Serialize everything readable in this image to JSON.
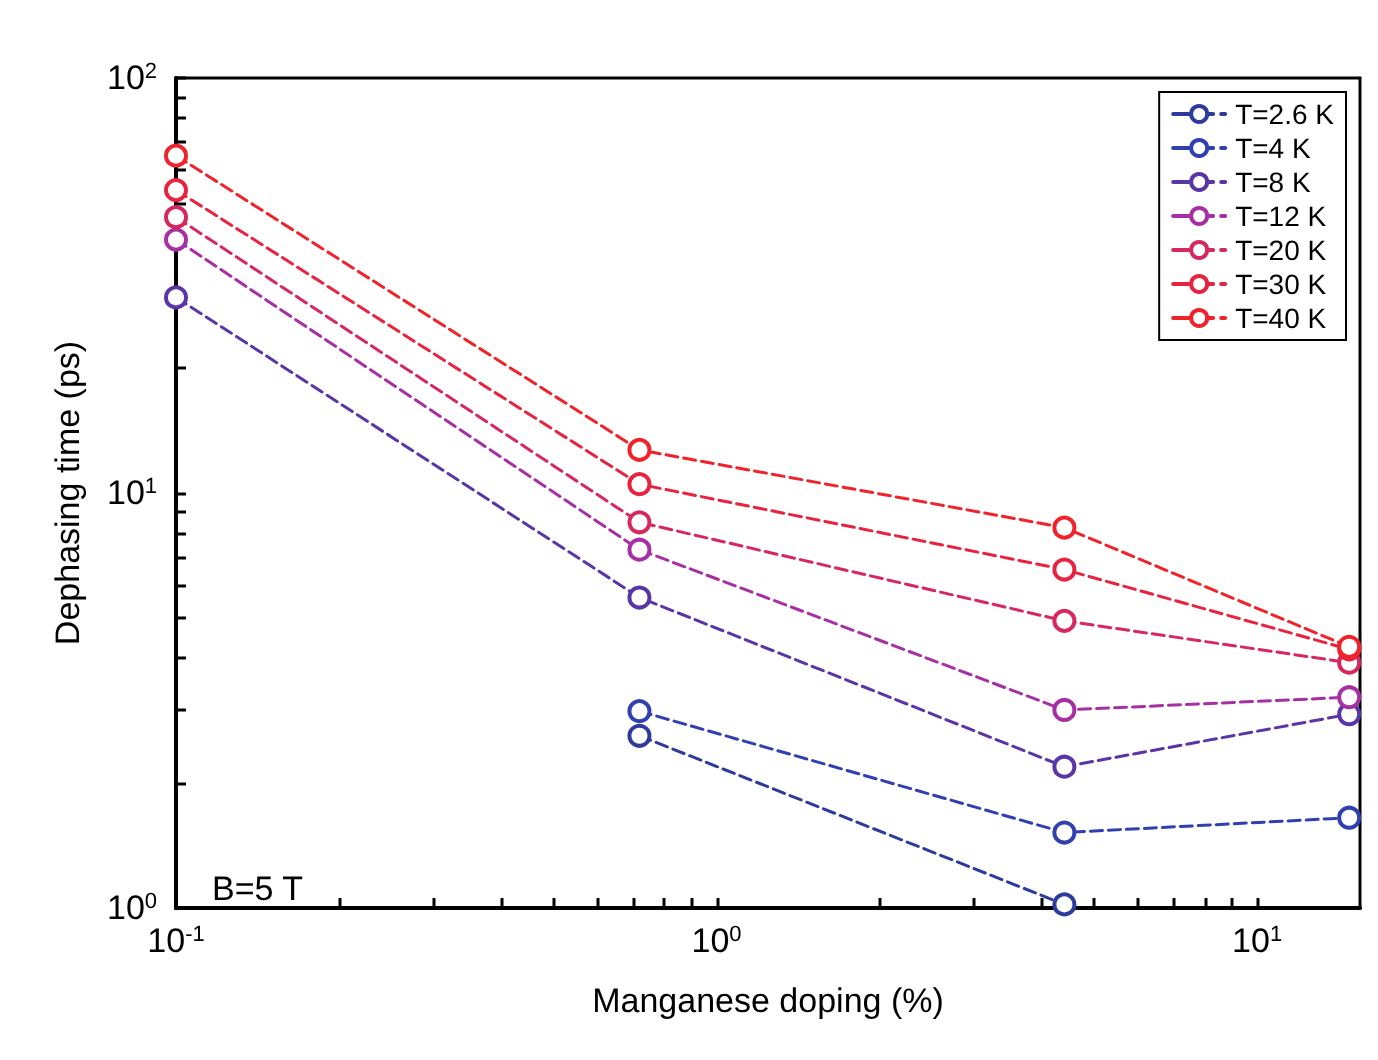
{
  "chart_data": {
    "type": "line",
    "xlabel": "Manganese doping (%)",
    "ylabel": "Dephasing time (ps)",
    "x": [
      0.1,
      0.72,
      4.4,
      14.8
    ],
    "series": [
      {
        "name": "T=2.6 K",
        "color": "#2d3c9c",
        "values": [
          null,
          2.6,
          1.02,
          null
        ]
      },
      {
        "name": "T=4 K",
        "color": "#3040b0",
        "values": [
          null,
          2.98,
          1.52,
          1.65
        ]
      },
      {
        "name": "T=8 K",
        "color": "#5a35a6",
        "values": [
          29.6,
          5.6,
          2.19,
          2.93
        ]
      },
      {
        "name": "T=12 K",
        "color": "#a630a3",
        "values": [
          40.8,
          7.3,
          3.0,
          3.22
        ]
      },
      {
        "name": "T=20 K",
        "color": "#d6285e",
        "values": [
          46.2,
          8.5,
          4.92,
          3.9
        ]
      },
      {
        "name": "T=30 K",
        "color": "#e8233f",
        "values": [
          53.7,
          10.5,
          6.54,
          4.2
        ]
      },
      {
        "name": "T=40 K",
        "color": "#f0232a",
        "values": [
          65,
          12.7,
          8.25,
          4.26
        ]
      }
    ],
    "log": "xy",
    "xlim": [
      0.1,
      15.5
    ],
    "ylim": [
      1,
      100
    ],
    "xticks": [
      {
        "value": 0.1,
        "label": "10$^{-1}$"
      },
      {
        "value": 0.2,
        "label": null
      },
      {
        "value": 0.3,
        "label": null
      },
      {
        "value": 0.4,
        "label": null
      },
      {
        "value": 0.5,
        "label": null
      },
      {
        "value": 0.6,
        "label": null
      },
      {
        "value": 0.7,
        "label": null
      },
      {
        "value": 0.8,
        "label": null
      },
      {
        "value": 0.9,
        "label": null
      },
      {
        "value": 1,
        "label": "10$^{0}$"
      },
      {
        "value": 2,
        "label": null
      },
      {
        "value": 3,
        "label": null
      },
      {
        "value": 4,
        "label": null
      },
      {
        "value": 5,
        "label": null
      },
      {
        "value": 6,
        "label": null
      },
      {
        "value": 7,
        "label": null
      },
      {
        "value": 8,
        "label": null
      },
      {
        "value": 9,
        "label": null
      },
      {
        "value": 10,
        "label": "10$^{1}$"
      }
    ],
    "yticks": [
      {
        "value": 1,
        "label": "10$^{0}$"
      },
      {
        "value": 2,
        "label": null
      },
      {
        "value": 3,
        "label": null
      },
      {
        "value": 4,
        "label": null
      },
      {
        "value": 5,
        "label": null
      },
      {
        "value": 6,
        "label": null
      },
      {
        "value": 7,
        "label": null
      },
      {
        "value": 8,
        "label": null
      },
      {
        "value": 9,
        "label": null
      },
      {
        "value": 10,
        "label": "10$^{1}$"
      },
      {
        "value": 20,
        "label": null
      },
      {
        "value": 30,
        "label": null
      },
      {
        "value": 40,
        "label": null
      },
      {
        "value": 50,
        "label": null
      },
      {
        "value": 60,
        "label": null
      },
      {
        "value": 70,
        "label": null
      },
      {
        "value": 80,
        "label": null
      },
      {
        "value": 90,
        "label": null
      },
      {
        "value": 100,
        "label": "10$^{2}$"
      }
    ],
    "marker": "circle",
    "line_style": "dashed",
    "grid": false,
    "legend": "top right",
    "annotations": [
      "B=5 T"
    ]
  }
}
